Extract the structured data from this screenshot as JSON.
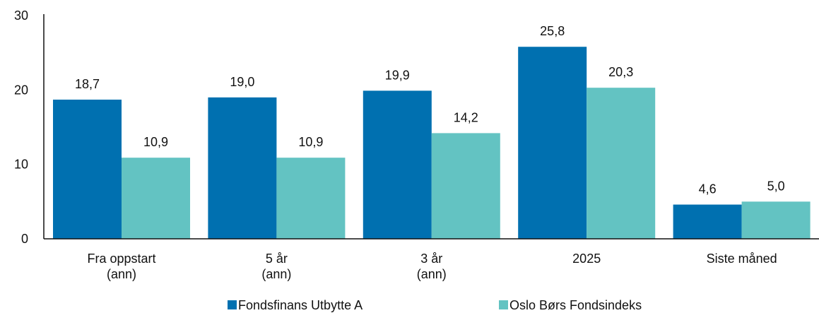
{
  "chart_data": {
    "type": "bar",
    "categories": [
      [
        "Fra oppstart",
        "(ann)"
      ],
      [
        "5 år",
        "(ann)"
      ],
      [
        "3 år",
        "(ann)"
      ],
      [
        "2025"
      ],
      [
        "Siste måned"
      ]
    ],
    "series": [
      {
        "name": "Fondsfinans Utbytte A",
        "color": "#0070b0",
        "values": [
          18.7,
          19.0,
          19.9,
          25.8,
          4.6
        ],
        "labels": [
          "18,7",
          "19,0",
          "19,9",
          "25,8",
          "4,6"
        ]
      },
      {
        "name": "Oslo Børs Fondsindeks",
        "color": "#63c3c2",
        "values": [
          10.9,
          10.9,
          14.2,
          20.3,
          5.0
        ],
        "labels": [
          "10,9",
          "10,9",
          "14,2",
          "20,3",
          "5,0"
        ]
      }
    ],
    "yticks": [
      "0",
      "10",
      "20",
      "30"
    ],
    "ylim": [
      0,
      30
    ],
    "title": "",
    "xlabel": "",
    "ylabel": "",
    "grid": false,
    "legend_position": "bottom"
  }
}
